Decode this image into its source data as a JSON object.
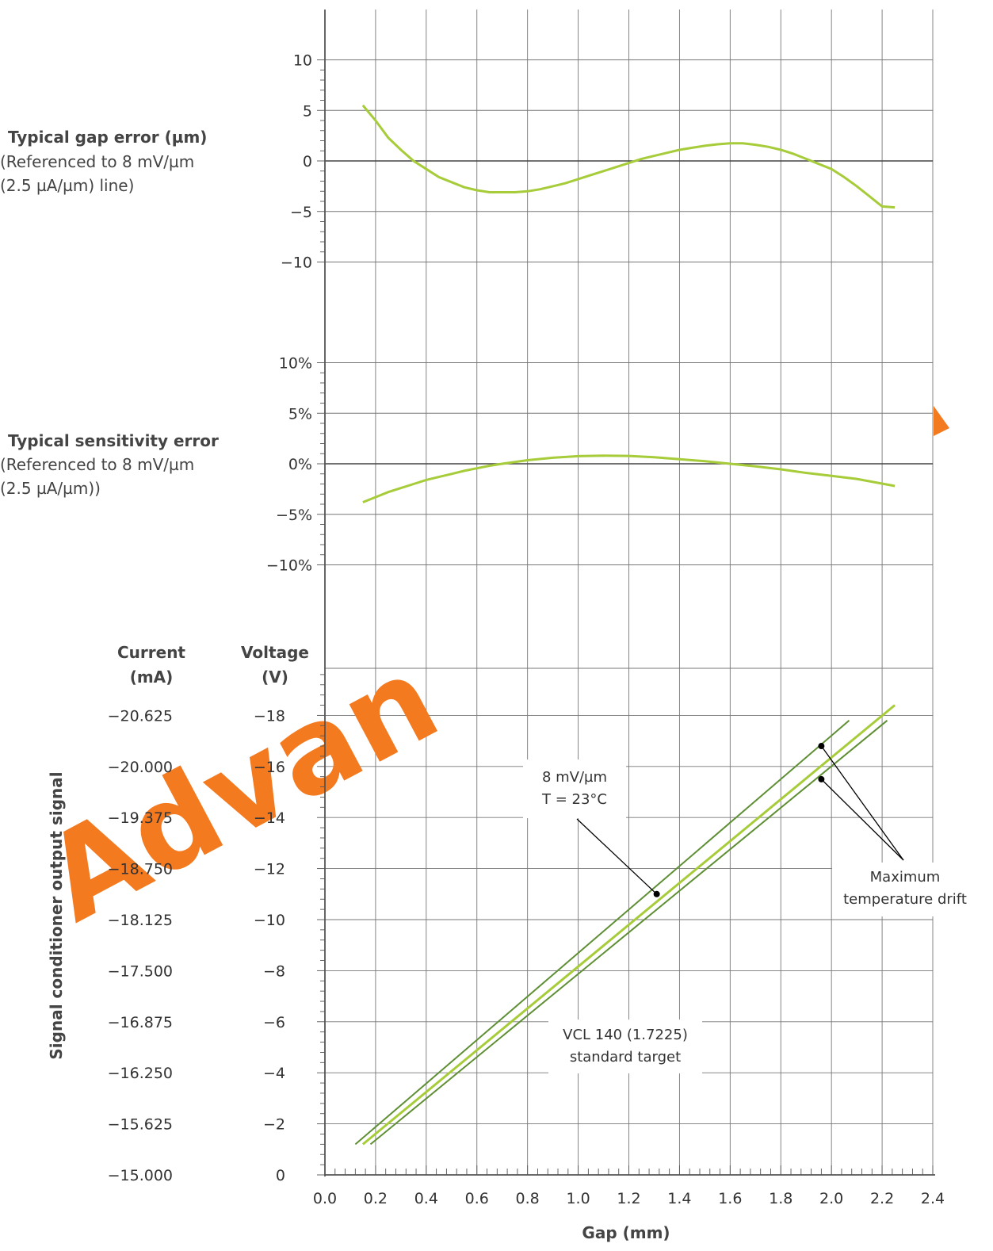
{
  "chart_data": [
    {
      "type": "line",
      "title": "Typical gap error (µm)",
      "subtitle_lines": [
        "(Referenced to 8 mV/µm",
        "(2.5 µA/µm) line)"
      ],
      "y_ticks": [
        "10",
        "5",
        "0",
        "−5",
        "−10"
      ],
      "ylim": [
        -10,
        10
      ],
      "xlim": [
        0,
        2.4
      ],
      "series": [
        {
          "x": [
            0.15,
            0.2,
            0.25,
            0.3,
            0.35,
            0.4,
            0.45,
            0.5,
            0.55,
            0.6,
            0.65,
            0.7,
            0.75,
            0.8,
            0.85,
            0.9,
            0.95,
            1.0,
            1.05,
            1.1,
            1.15,
            1.2,
            1.25,
            1.3,
            1.35,
            1.4,
            1.45,
            1.5,
            1.55,
            1.6,
            1.65,
            1.7,
            1.75,
            1.8,
            1.85,
            1.9,
            1.95,
            2.0,
            2.05,
            2.1,
            2.15,
            2.2,
            2.25
          ],
          "y": [
            5.5,
            4.0,
            2.3,
            1.1,
            0.0,
            -0.8,
            -1.6,
            -2.1,
            -2.6,
            -2.9,
            -3.1,
            -3.1,
            -3.1,
            -3.0,
            -2.8,
            -2.5,
            -2.2,
            -1.8,
            -1.4,
            -1.0,
            -0.6,
            -0.2,
            0.2,
            0.5,
            0.8,
            1.1,
            1.3,
            1.5,
            1.65,
            1.75,
            1.75,
            1.6,
            1.4,
            1.1,
            0.7,
            0.2,
            -0.3,
            -0.8,
            -1.6,
            -2.5,
            -3.5,
            -4.5,
            -4.6
          ]
        }
      ]
    },
    {
      "type": "line",
      "title": "Typical sensitivity error",
      "subtitle_lines": [
        "(Referenced to 8 mV/µm",
        "(2.5 µA/µm))"
      ],
      "y_ticks": [
        "10%",
        "5%",
        "0%",
        "−5%",
        "−10%"
      ],
      "ylim": [
        -10,
        10
      ],
      "xlim": [
        0,
        2.4
      ],
      "series": [
        {
          "x": [
            0.15,
            0.2,
            0.25,
            0.3,
            0.35,
            0.4,
            0.45,
            0.5,
            0.55,
            0.6,
            0.65,
            0.7,
            0.8,
            0.9,
            1.0,
            1.1,
            1.2,
            1.3,
            1.4,
            1.5,
            1.6,
            1.7,
            1.8,
            1.9,
            2.0,
            2.1,
            2.25
          ],
          "y": [
            -3.8,
            -3.3,
            -2.8,
            -2.4,
            -2.0,
            -1.6,
            -1.3,
            -1.0,
            -0.7,
            -0.45,
            -0.2,
            0.0,
            0.35,
            0.6,
            0.75,
            0.8,
            0.78,
            0.65,
            0.45,
            0.25,
            0.0,
            -0.25,
            -0.55,
            -0.9,
            -1.2,
            -1.5,
            -2.2
          ]
        }
      ]
    },
    {
      "type": "line",
      "ylabel": "Signal conditioner output signal",
      "xlabel": "Gap (mm)",
      "x_ticks": [
        "0.0",
        "0.2",
        "0.4",
        "0.6",
        "0.8",
        "1.0",
        "1.2",
        "1.4",
        "1.6",
        "1.8",
        "2.0",
        "2.2",
        "2.4"
      ],
      "xlim": [
        0,
        2.4
      ],
      "ylim": [
        0,
        20
      ],
      "current_header": [
        "Current",
        "(mA)"
      ],
      "voltage_header": [
        "Voltage",
        "(V)"
      ],
      "current_ticks": [
        "−20.625",
        "−20.000",
        "−19.375",
        "−18.750",
        "−18.125",
        "−17.500",
        "−16.875",
        "−16.250",
        "−15.625",
        "−15.000"
      ],
      "voltage_ticks": [
        "−18",
        "−16",
        "−14",
        "−12",
        "−10",
        "−8",
        "−6",
        "−4",
        "−2",
        "0"
      ],
      "series": [
        {
          "x": [
            0.15,
            2.25
          ],
          "y": [
            1.2,
            18.4
          ]
        },
        {
          "x": [
            0.12,
            2.07
          ],
          "y": [
            1.2,
            17.8
          ]
        },
        {
          "x": [
            0.18,
            2.22
          ],
          "y": [
            1.2,
            17.8
          ]
        }
      ],
      "annotations": [
        {
          "lines": [
            "8 mV/µm",
            "T = 23°C"
          ],
          "target_x": 1.31,
          "target_y": 11.0
        },
        {
          "lines": [
            "Maximum",
            "temperature drift"
          ],
          "targets": [
            [
              1.96,
              16.8
            ],
            [
              1.96,
              15.5
            ]
          ]
        },
        {
          "lines": [
            "VCL 140 (1.7225)",
            "standard target"
          ]
        }
      ]
    }
  ],
  "watermark": "Advan",
  "colors": {
    "curve": "#a7cc3a",
    "drift": "#5f8f35",
    "grid": "#777777",
    "zero": "#444444",
    "watermark": "#f47a20"
  }
}
